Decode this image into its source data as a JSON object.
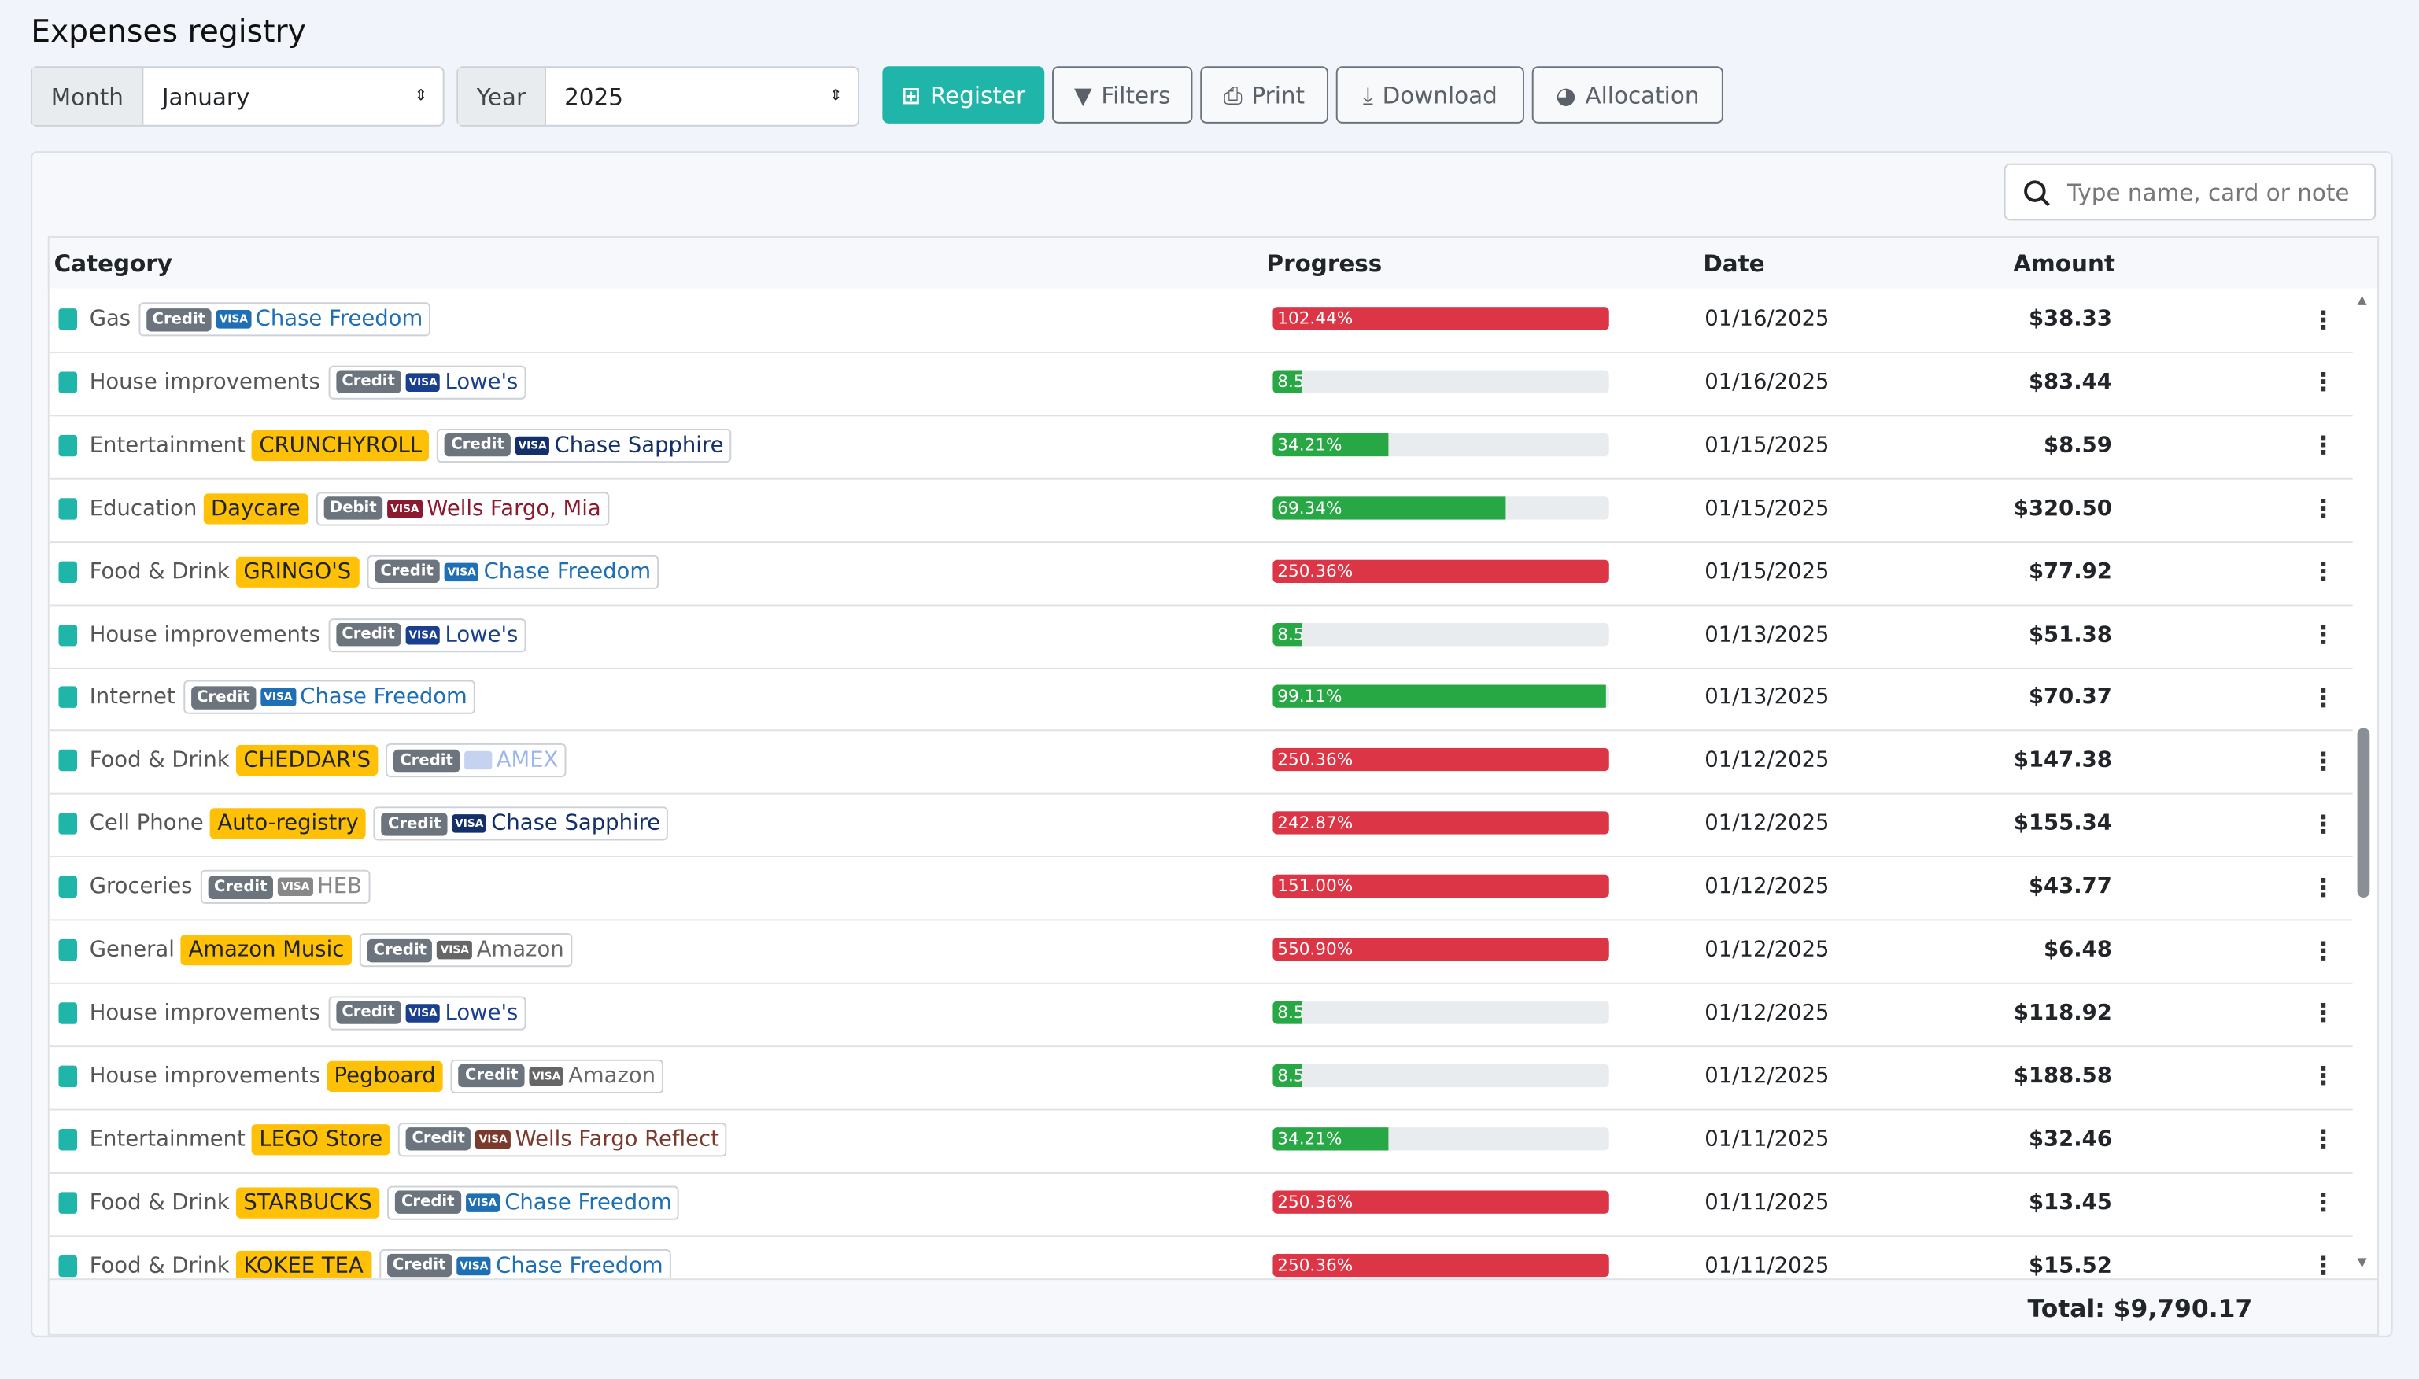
{
  "header": {
    "title": "Expenses registry"
  },
  "controls": {
    "month_label": "Month",
    "month": "January",
    "year_label": "Year",
    "year": "2025",
    "buttons": [
      "Register",
      "Filters",
      "Print",
      "Download",
      "Allocation"
    ]
  },
  "search": {
    "placeholder": "Type name, card or note"
  },
  "table": {
    "columns": [
      "Category",
      "Progress",
      "Date",
      "Amount"
    ],
    "rows": [
      {
        "category": "Gas",
        "card_type": "Credit",
        "brand": "VISA",
        "card": "Chase Freedom",
        "card_color": "#1f6fb5",
        "progress": 102.44,
        "progress_label": "102.44%",
        "bar_color": "#dc3545",
        "date": "01/16/2025",
        "amount": "$38.33"
      },
      {
        "category": "House improvements",
        "card_type": "Credit",
        "brand": "VISA",
        "card": "Lowe's",
        "card_color": "#1b3f8f",
        "progress": 8.5,
        "progress_label": "8.5",
        "bar_color": "#28a745",
        "date": "01/16/2025",
        "amount": "$83.44"
      },
      {
        "category": "Entertainment",
        "tag": "CRUNCHYROLL",
        "card_type": "Credit",
        "brand": "VISA",
        "card": "Chase Sapphire",
        "card_color": "#14306b",
        "progress": 34.21,
        "progress_label": "34.21%",
        "bar_color": "#28a745",
        "date": "01/15/2025",
        "amount": "$8.59"
      },
      {
        "category": "Education",
        "tag": "Daycare",
        "card_type": "Debit",
        "brand": "VISA",
        "card": "Wells Fargo, Mia",
        "card_color": "#8b1a2e",
        "progress": 69.34,
        "progress_label": "69.34%",
        "bar_color": "#28a745",
        "date": "01/15/2025",
        "amount": "$320.50"
      },
      {
        "category": "Food & Drink",
        "tag": "GRINGO'S",
        "card_type": "Credit",
        "brand": "VISA",
        "card": "Chase Freedom",
        "card_color": "#1f6fb5",
        "progress": 250.36,
        "progress_label": "250.36%",
        "bar_color": "#dc3545",
        "date": "01/15/2025",
        "amount": "$77.92"
      },
      {
        "category": "House improvements",
        "card_type": "Credit",
        "brand": "VISA",
        "card": "Lowe's",
        "card_color": "#1b3f8f",
        "progress": 8.5,
        "progress_label": "8.5",
        "bar_color": "#28a745",
        "date": "01/13/2025",
        "amount": "$51.38"
      },
      {
        "category": "Internet",
        "card_type": "Credit",
        "brand": "VISA",
        "card": "Chase Freedom",
        "card_color": "#1f6fb5",
        "progress": 99.11,
        "progress_label": "99.11%",
        "bar_color": "#28a745",
        "date": "01/13/2025",
        "amount": "$70.37"
      },
      {
        "category": "Food & Drink",
        "tag": "CHEDDAR'S",
        "card_type": "Credit",
        "card": "AMEX",
        "card_color": "#9fb6e8",
        "progress": 250.36,
        "progress_label": "250.36%",
        "bar_color": "#dc3545",
        "date": "01/12/2025",
        "amount": "$147.38"
      },
      {
        "category": "Cell Phone",
        "tag": "Auto-registry",
        "card_type": "Credit",
        "brand": "VISA",
        "card": "Chase Sapphire",
        "card_color": "#14306b",
        "progress": 242.87,
        "progress_label": "242.87%",
        "bar_color": "#dc3545",
        "date": "01/12/2025",
        "amount": "$155.34"
      },
      {
        "category": "Groceries",
        "card_type": "Credit",
        "brand": "VISA",
        "card": "HEB",
        "card_color": "#888888",
        "progress": 151.0,
        "progress_label": "151.00%",
        "bar_color": "#dc3545",
        "date": "01/12/2025",
        "amount": "$43.77"
      },
      {
        "category": "General",
        "tag": "Amazon Music",
        "card_type": "Credit",
        "brand": "VISA",
        "card": "Amazon",
        "card_color": "#666666",
        "progress": 550.9,
        "progress_label": "550.90%",
        "bar_color": "#dc3545",
        "date": "01/12/2025",
        "amount": "$6.48"
      },
      {
        "category": "House improvements",
        "card_type": "Credit",
        "brand": "VISA",
        "card": "Lowe's",
        "card_color": "#1b3f8f",
        "progress": 8.5,
        "progress_label": "8.5",
        "bar_color": "#28a745",
        "date": "01/12/2025",
        "amount": "$118.92"
      },
      {
        "category": "House improvements",
        "tag": "Pegboard",
        "card_type": "Credit",
        "brand": "VISA",
        "card": "Amazon",
        "card_color": "#666666",
        "progress": 8.5,
        "progress_label": "8.5",
        "bar_color": "#28a745",
        "date": "01/12/2025",
        "amount": "$188.58"
      },
      {
        "category": "Entertainment",
        "tag": "LEGO Store",
        "card_type": "Credit",
        "brand": "VISA",
        "card": "Wells Fargo Reflect",
        "card_color": "#7a3b2e",
        "progress": 34.21,
        "progress_label": "34.21%",
        "bar_color": "#28a745",
        "date": "01/11/2025",
        "amount": "$32.46"
      },
      {
        "category": "Food & Drink",
        "tag": "STARBUCKS",
        "card_type": "Credit",
        "brand": "VISA",
        "card": "Chase Freedom",
        "card_color": "#1f6fb5",
        "progress": 250.36,
        "progress_label": "250.36%",
        "bar_color": "#dc3545",
        "date": "01/11/2025",
        "amount": "$13.45"
      },
      {
        "category": "Food & Drink",
        "tag": "KOKEE TEA",
        "card_type": "Credit",
        "brand": "VISA",
        "card": "Chase Freedom",
        "card_color": "#1f6fb5",
        "progress": 250.36,
        "progress_label": "250.36%",
        "bar_color": "#dc3545",
        "date": "01/11/2025",
        "amount": "$15.52"
      }
    ]
  },
  "footer": {
    "total": "Total: $9,790.17"
  }
}
